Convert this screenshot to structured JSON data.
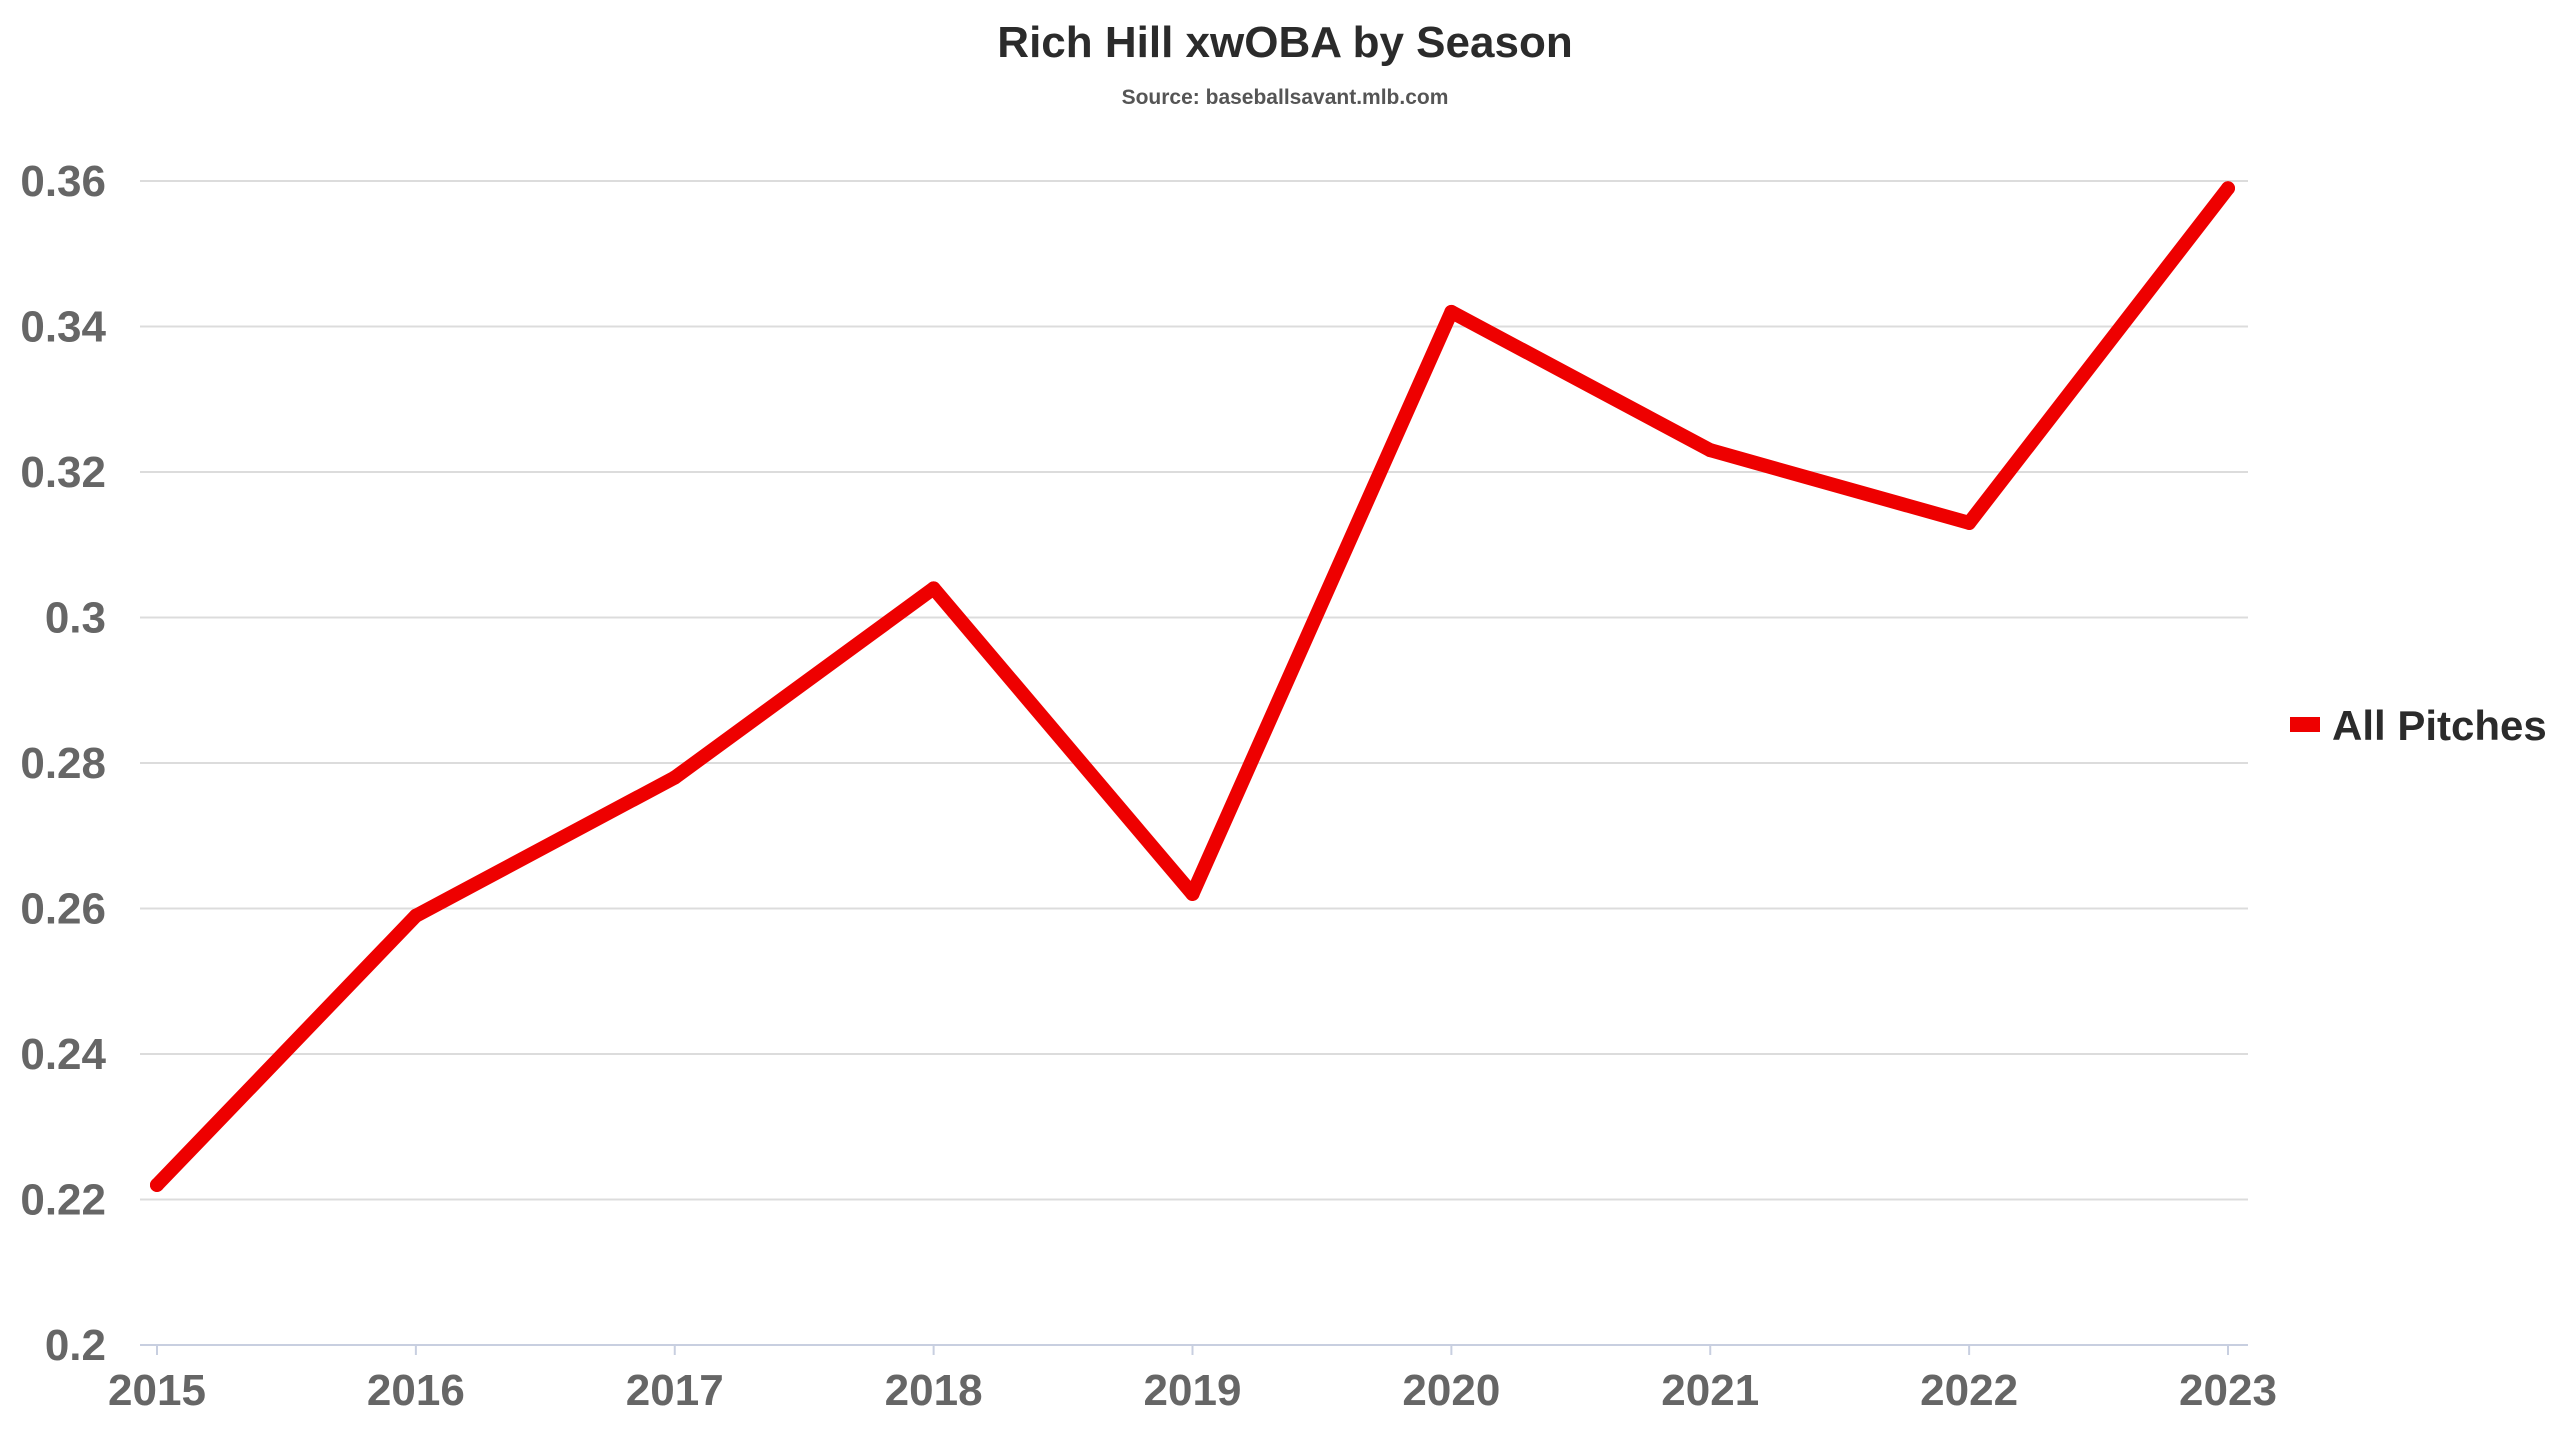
{
  "chart_data": {
    "type": "line",
    "title": "Rich Hill xwOBA by Season",
    "subtitle": "Source: baseballsavant.mlb.com",
    "xlabel": "",
    "ylabel": "",
    "categories": [
      "2015",
      "2016",
      "2017",
      "2018",
      "2019",
      "2020",
      "2021",
      "2022",
      "2023"
    ],
    "series": [
      {
        "name": "All Pitches",
        "color": "#ee0000",
        "values": [
          0.222,
          0.259,
          0.278,
          0.304,
          0.262,
          0.342,
          0.323,
          0.313,
          0.359
        ]
      }
    ],
    "ylim": [
      0.2,
      0.36
    ],
    "yticks": [
      "0.2",
      "0.22",
      "0.24",
      "0.26",
      "0.28",
      "0.3",
      "0.32",
      "0.34",
      "0.36"
    ],
    "grid": true,
    "legend_position": "right"
  }
}
